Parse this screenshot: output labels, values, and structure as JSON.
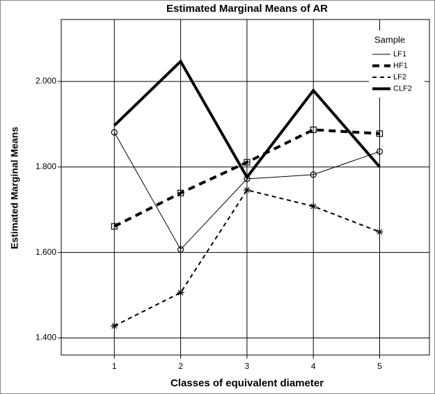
{
  "chart_data": {
    "type": "line",
    "title": "Estimated Marginal Means of AR",
    "xlabel": "Classes of equivalent diameter",
    "ylabel": "Estimated Marginal Means",
    "legend_title": "Sample",
    "legend": "top-right",
    "grid": true,
    "x": [
      1,
      2,
      3,
      4,
      5
    ],
    "xlim": [
      0.2,
      5.75
    ],
    "xticks": [
      1,
      2,
      3,
      4,
      5
    ],
    "ylim": [
      1.36,
      2.145
    ],
    "yticks": [
      {
        "value": 1.4,
        "label": "1.400"
      },
      {
        "value": 1.6,
        "label": "1.600"
      },
      {
        "value": 1.8,
        "label": "1.800"
      },
      {
        "value": 2.0,
        "label": "2.000"
      }
    ],
    "series": [
      {
        "name": "LF1",
        "color": "#000000",
        "linestyle": "solid",
        "linewidth": 1,
        "marker": "circle",
        "values": [
          1.881,
          1.607,
          1.772,
          1.782,
          1.836
        ]
      },
      {
        "name": "HF1",
        "color": "#000000",
        "linestyle": "dashed",
        "linewidth": 4,
        "marker": "square",
        "values": [
          1.661,
          1.739,
          1.811,
          1.887,
          1.878
        ]
      },
      {
        "name": "LF2",
        "color": "#000000",
        "linestyle": "dashed",
        "linewidth": 2,
        "marker": "star",
        "values": [
          1.428,
          1.506,
          1.746,
          1.708,
          1.648
        ]
      },
      {
        "name": "CLF2",
        "color": "#000000",
        "linestyle": "solid",
        "linewidth": 4,
        "marker": "none",
        "values": [
          1.897,
          2.047,
          1.776,
          1.979,
          1.8
        ]
      }
    ]
  }
}
